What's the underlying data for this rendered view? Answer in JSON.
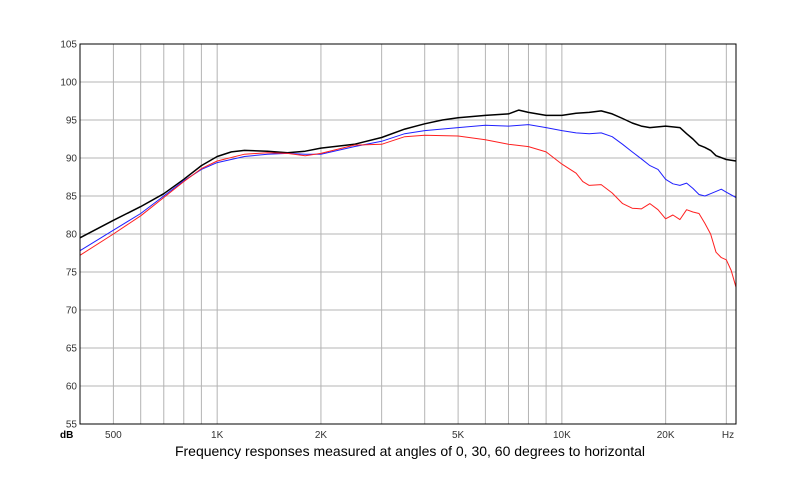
{
  "chart_data": {
    "type": "line",
    "caption": "Frequency responses measured at angles of 0, 30, 60 degrees to horizontal",
    "y_unit_label": "dB",
    "x_unit_label": "Hz",
    "x_scale": "log",
    "xlim": [
      400,
      32000
    ],
    "ylim": [
      55,
      105
    ],
    "grid": true,
    "y_ticks": [
      55,
      60,
      65,
      70,
      75,
      80,
      85,
      90,
      95,
      100,
      105
    ],
    "x_tick_labels": [
      {
        "value": 500,
        "label": "500"
      },
      {
        "value": 1000,
        "label": "1K"
      },
      {
        "value": 2000,
        "label": "2K"
      },
      {
        "value": 5000,
        "label": "5K"
      },
      {
        "value": 10000,
        "label": "10K"
      },
      {
        "value": 20000,
        "label": "20K"
      }
    ],
    "x_gridlines": [
      500,
      600,
      700,
      800,
      900,
      1000,
      2000,
      3000,
      4000,
      5000,
      6000,
      7000,
      8000,
      9000,
      10000,
      20000,
      30000
    ],
    "series": [
      {
        "color": "#000000",
        "values": [
          [
            400,
            79.5
          ],
          [
            500,
            81.8
          ],
          [
            600,
            83.6
          ],
          [
            700,
            85.3
          ],
          [
            800,
            87.2
          ],
          [
            900,
            89.0
          ],
          [
            1000,
            90.2
          ],
          [
            1100,
            90.8
          ],
          [
            1200,
            91.0
          ],
          [
            1400,
            90.9
          ],
          [
            1600,
            90.7
          ],
          [
            1800,
            90.9
          ],
          [
            2000,
            91.3
          ],
          [
            2500,
            91.8
          ],
          [
            3000,
            92.7
          ],
          [
            3500,
            93.8
          ],
          [
            4000,
            94.5
          ],
          [
            4500,
            95.0
          ],
          [
            5000,
            95.3
          ],
          [
            6000,
            95.6
          ],
          [
            7000,
            95.8
          ],
          [
            7500,
            96.3
          ],
          [
            8000,
            96.0
          ],
          [
            9000,
            95.6
          ],
          [
            10000,
            95.6
          ],
          [
            11000,
            95.9
          ],
          [
            12000,
            96.0
          ],
          [
            13000,
            96.2
          ],
          [
            14000,
            95.8
          ],
          [
            15000,
            95.2
          ],
          [
            16000,
            94.6
          ],
          [
            17000,
            94.2
          ],
          [
            18000,
            94.0
          ],
          [
            20000,
            94.2
          ],
          [
            22000,
            94.0
          ],
          [
            23000,
            93.2
          ],
          [
            24000,
            92.5
          ],
          [
            25000,
            91.7
          ],
          [
            26000,
            91.4
          ],
          [
            27000,
            91.0
          ],
          [
            28000,
            90.3
          ],
          [
            30000,
            89.8
          ],
          [
            32000,
            89.6
          ]
        ]
      },
      {
        "color": "#2020ff",
        "values": [
          [
            400,
            77.8
          ],
          [
            500,
            80.5
          ],
          [
            600,
            82.7
          ],
          [
            700,
            85.0
          ],
          [
            800,
            87.0
          ],
          [
            900,
            88.5
          ],
          [
            1000,
            89.4
          ],
          [
            1200,
            90.2
          ],
          [
            1400,
            90.5
          ],
          [
            1600,
            90.6
          ],
          [
            1800,
            90.5
          ],
          [
            2000,
            90.5
          ],
          [
            2500,
            91.5
          ],
          [
            3000,
            92.2
          ],
          [
            3500,
            93.2
          ],
          [
            4000,
            93.6
          ],
          [
            5000,
            94.0
          ],
          [
            6000,
            94.3
          ],
          [
            7000,
            94.2
          ],
          [
            8000,
            94.4
          ],
          [
            9000,
            94.0
          ],
          [
            10000,
            93.6
          ],
          [
            11000,
            93.3
          ],
          [
            12000,
            93.2
          ],
          [
            13000,
            93.3
          ],
          [
            14000,
            92.8
          ],
          [
            15000,
            91.8
          ],
          [
            16000,
            90.8
          ],
          [
            17000,
            89.9
          ],
          [
            18000,
            89.0
          ],
          [
            19000,
            88.5
          ],
          [
            20000,
            87.2
          ],
          [
            21000,
            86.6
          ],
          [
            22000,
            86.4
          ],
          [
            23000,
            86.7
          ],
          [
            24000,
            86.0
          ],
          [
            25000,
            85.2
          ],
          [
            26000,
            85.0
          ],
          [
            27000,
            85.3
          ],
          [
            28000,
            85.6
          ],
          [
            29000,
            85.9
          ],
          [
            30000,
            85.5
          ],
          [
            32000,
            84.8
          ]
        ]
      },
      {
        "color": "#ff2020",
        "values": [
          [
            400,
            77.2
          ],
          [
            500,
            80.0
          ],
          [
            600,
            82.4
          ],
          [
            700,
            84.8
          ],
          [
            800,
            86.9
          ],
          [
            900,
            88.6
          ],
          [
            1000,
            89.6
          ],
          [
            1200,
            90.5
          ],
          [
            1400,
            90.7
          ],
          [
            1600,
            90.6
          ],
          [
            1800,
            90.3
          ],
          [
            2000,
            90.6
          ],
          [
            2500,
            91.7
          ],
          [
            3000,
            91.8
          ],
          [
            3500,
            92.8
          ],
          [
            4000,
            93.0
          ],
          [
            5000,
            92.9
          ],
          [
            6000,
            92.4
          ],
          [
            7000,
            91.8
          ],
          [
            8000,
            91.5
          ],
          [
            9000,
            90.8
          ],
          [
            10000,
            89.2
          ],
          [
            11000,
            88.0
          ],
          [
            11500,
            86.9
          ],
          [
            12000,
            86.4
          ],
          [
            13000,
            86.5
          ],
          [
            14000,
            85.4
          ],
          [
            15000,
            84.0
          ],
          [
            16000,
            83.4
          ],
          [
            17000,
            83.3
          ],
          [
            18000,
            84.0
          ],
          [
            19000,
            83.2
          ],
          [
            20000,
            82.0
          ],
          [
            21000,
            82.5
          ],
          [
            22000,
            81.9
          ],
          [
            23000,
            83.2
          ],
          [
            24000,
            82.9
          ],
          [
            25000,
            82.7
          ],
          [
            26000,
            81.4
          ],
          [
            27000,
            80.0
          ],
          [
            28000,
            77.6
          ],
          [
            29000,
            76.9
          ],
          [
            30000,
            76.6
          ],
          [
            31000,
            75.2
          ],
          [
            32000,
            73.0
          ]
        ]
      }
    ]
  }
}
